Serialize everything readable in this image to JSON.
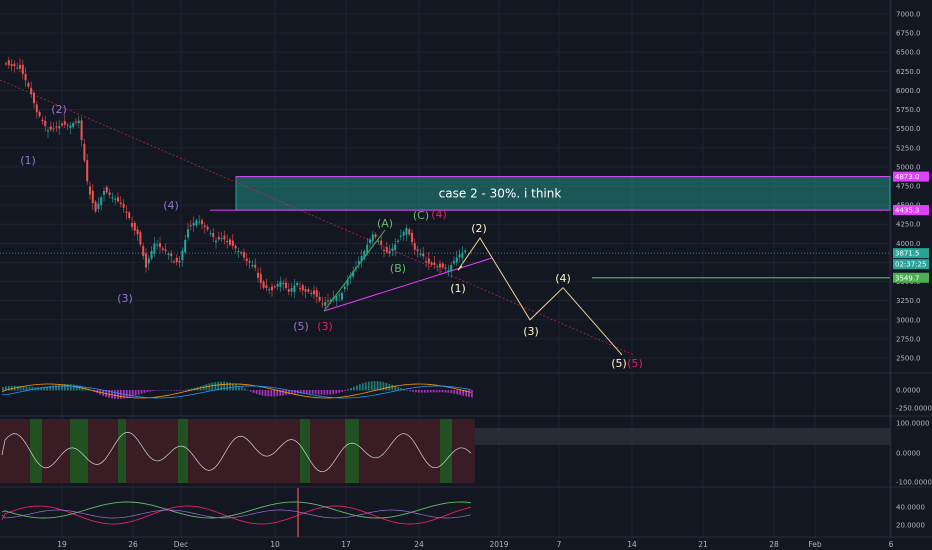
{
  "chart_data": {
    "type": "candlestick",
    "price_axis": {
      "ticks": [
        "7000.0",
        "6750.0",
        "6500.0",
        "6250.0",
        "6000.0",
        "5750.0",
        "5500.0",
        "5250.0",
        "5000.0",
        "4750.0",
        "4500.0",
        "4250.0",
        "4000.0",
        "3750.0",
        "3500.0",
        "3250.0",
        "3000.0",
        "2750.0",
        "2500.0"
      ],
      "ylim": [
        2500,
        7000
      ]
    },
    "time_axis": {
      "ticks": [
        "19",
        "26",
        "Dec",
        "10",
        "17",
        "24",
        "2019",
        "7",
        "14",
        "21",
        "28",
        "Feb",
        "6"
      ]
    },
    "price_series": [
      {
        "t": 0,
        "p": 6350
      },
      {
        "t": 1,
        "p": 6300
      },
      {
        "t": 2,
        "p": 6050
      },
      {
        "t": 3,
        "p": 5700
      },
      {
        "t": 4,
        "p": 5500
      },
      {
        "t": 5,
        "p": 5530
      },
      {
        "t": 6,
        "p": 5560
      },
      {
        "t": 7,
        "p": 5540
      },
      {
        "t": 8,
        "p": 5590
      },
      {
        "t": 9,
        "p": 4780
      },
      {
        "t": 10,
        "p": 4450
      },
      {
        "t": 11,
        "p": 4700
      },
      {
        "t": 12,
        "p": 4600
      },
      {
        "t": 13,
        "p": 4500
      },
      {
        "t": 14,
        "p": 4300
      },
      {
        "t": 15,
        "p": 4150
      },
      {
        "t": 16,
        "p": 3700
      },
      {
        "t": 17,
        "p": 4000
      },
      {
        "t": 18,
        "p": 3900
      },
      {
        "t": 19,
        "p": 3800
      },
      {
        "t": 20,
        "p": 3780
      },
      {
        "t": 21,
        "p": 4200
      },
      {
        "t": 22,
        "p": 4300
      },
      {
        "t": 23,
        "p": 4200
      },
      {
        "t": 24,
        "p": 4050
      },
      {
        "t": 25,
        "p": 4100
      },
      {
        "t": 26,
        "p": 4000
      },
      {
        "t": 27,
        "p": 3900
      },
      {
        "t": 28,
        "p": 3750
      },
      {
        "t": 29,
        "p": 3650
      },
      {
        "t": 30,
        "p": 3450
      },
      {
        "t": 31,
        "p": 3400
      },
      {
        "t": 32,
        "p": 3500
      },
      {
        "t": 33,
        "p": 3350
      },
      {
        "t": 34,
        "p": 3450
      },
      {
        "t": 35,
        "p": 3400
      },
      {
        "t": 36,
        "p": 3350
      },
      {
        "t": 37,
        "p": 3200
      },
      {
        "t": 38,
        "p": 3250
      },
      {
        "t": 39,
        "p": 3300
      },
      {
        "t": 40,
        "p": 3550
      },
      {
        "t": 41,
        "p": 3700
      },
      {
        "t": 42,
        "p": 3900
      },
      {
        "t": 43,
        "p": 4100
      },
      {
        "t": 44,
        "p": 3950
      },
      {
        "t": 45,
        "p": 3900
      },
      {
        "t": 46,
        "p": 4050
      },
      {
        "t": 47,
        "p": 4200
      },
      {
        "t": 48,
        "p": 3900
      },
      {
        "t": 49,
        "p": 3800
      },
      {
        "t": 50,
        "p": 3750
      },
      {
        "t": 51,
        "p": 3700
      },
      {
        "t": 52,
        "p": 3650
      },
      {
        "t": 53,
        "p": 3800
      },
      {
        "t": 54,
        "p": 3871.5
      }
    ],
    "price_tags": [
      {
        "label": "4873.0",
        "color": "#e040fb"
      },
      {
        "label": "4435.3",
        "color": "#e040fb"
      },
      {
        "label": "3871.5",
        "color": "#26a69a"
      },
      {
        "label": "02:37:25",
        "color": "#26a69a"
      },
      {
        "label": "3549.7",
        "color": "#4caf50"
      }
    ],
    "zone": {
      "label": "case 2 - 30%. i think",
      "top": 4873,
      "bottom": 4435,
      "color": "#26a69a"
    },
    "wave_labels": [
      {
        "text": "(1)",
        "color": "#9575cd"
      },
      {
        "text": "(2)",
        "color": "#9575cd"
      },
      {
        "text": "(3)",
        "color": "#9575cd"
      },
      {
        "text": "(4)",
        "color": "#9575cd"
      },
      {
        "text": "(5)",
        "color": "#9575cd"
      },
      {
        "text": "(3)",
        "color": "#e91e63"
      },
      {
        "text": "(A)",
        "color": "#66bb6a"
      },
      {
        "text": "(B)",
        "color": "#66bb6a"
      },
      {
        "text": "(C)",
        "color": "#66bb6a"
      },
      {
        "text": "(4)",
        "color": "#e91e63"
      },
      {
        "text": "(1)",
        "color": "#fff3c4"
      },
      {
        "text": "(2)",
        "color": "#fff3c4"
      },
      {
        "text": "(3)",
        "color": "#fff3c4"
      },
      {
        "text": "(4)",
        "color": "#fff3c4"
      },
      {
        "text": "(5)",
        "color": "#fff3c4"
      },
      {
        "text": "(5)",
        "color": "#e91e63"
      }
    ],
    "projection": [
      {
        "label": "(1)",
        "p": 3650
      },
      {
        "label": "(2)",
        "p": 4070
      },
      {
        "label": "(3)",
        "p": 3000
      },
      {
        "label": "(4)",
        "p": 3420
      },
      {
        "label": "(5)",
        "p": 2540
      }
    ],
    "support_line_price": 3549.7,
    "indicators": [
      {
        "name": "macd",
        "ticks": [
          "0.0000",
          "-250.0000"
        ]
      },
      {
        "name": "cci",
        "ticks": [
          "100.0000",
          "0.0000",
          "-100.0000"
        ]
      },
      {
        "name": "dmi",
        "ticks": [
          "40.0000",
          "20.0000"
        ]
      }
    ]
  },
  "colors": {
    "background": "#131722",
    "candle_up": "#26a69a",
    "candle_down": "#ef5350",
    "wave_primary": "#9575cd",
    "wave_abc": "#66bb6a",
    "wave_red": "#e91e63",
    "projection": "#f0d78c"
  }
}
